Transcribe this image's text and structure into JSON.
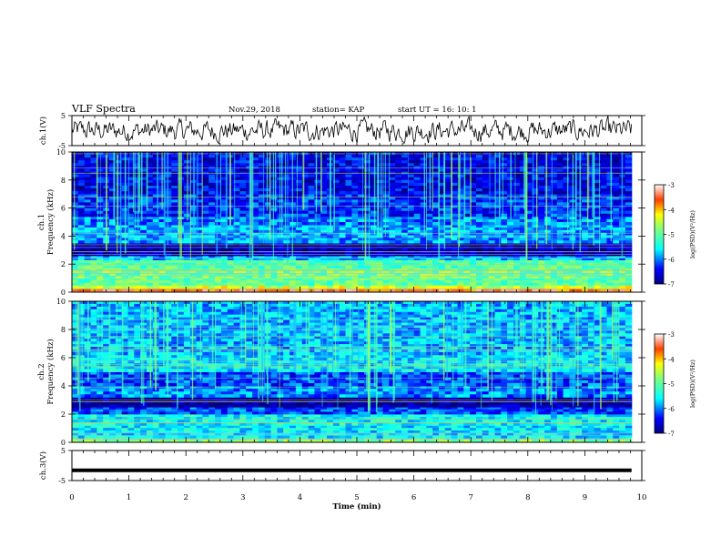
{
  "header": {
    "title": "VLF Spectra",
    "date": "Nov.29, 2018",
    "station": "station= KAP",
    "start_time": "start  UT =   16: 10: 1"
  },
  "chart_data": [
    {
      "type": "line",
      "name": "ch1-waveform-panel",
      "ylabel": "ch.1(V)",
      "ylim": [
        -5,
        5
      ],
      "yticks": [
        "5",
        "-5"
      ],
      "xlim": [
        0,
        10
      ],
      "x_data_end": 9.82,
      "description_of_trace": "noisy waveform oscillating roughly between -3 and +3 V",
      "amplitude_estimate": 2.5
    },
    {
      "type": "heatmap",
      "name": "ch1-spectrogram",
      "ylabel_line1": "ch.1",
      "ylabel_line2": "Frequency (kHz)",
      "ylim": [
        0,
        10
      ],
      "yticks": [
        "0",
        "2",
        "4",
        "6",
        "8",
        "10"
      ],
      "xlim": [
        0,
        10
      ],
      "x_data_end": 9.82,
      "colorbar": {
        "label": "log(PSD)(V²/Hz)",
        "range": [
          -7,
          -3
        ],
        "ticks": [
          "-3",
          "-4",
          "-5",
          "-6",
          "-7"
        ]
      },
      "bands_khz": [
        {
          "from": 0.0,
          "to": 0.25,
          "level": -3.6
        },
        {
          "from": 0.25,
          "to": 0.5,
          "level": -4.4
        },
        {
          "from": 0.5,
          "to": 1.0,
          "level": -5.0
        },
        {
          "from": 1.0,
          "to": 1.7,
          "level": -4.9
        },
        {
          "from": 1.7,
          "to": 2.3,
          "level": -5.1
        },
        {
          "from": 2.3,
          "to": 2.6,
          "level": -5.8
        },
        {
          "from": 2.6,
          "to": 3.5,
          "level": -6.8
        },
        {
          "from": 3.5,
          "to": 4.8,
          "level": -5.9
        },
        {
          "from": 4.8,
          "to": 5.4,
          "level": -6.0
        },
        {
          "from": 5.4,
          "to": 7.0,
          "level": -6.3
        },
        {
          "from": 7.0,
          "to": 10.0,
          "level": -6.5
        }
      ]
    },
    {
      "type": "heatmap",
      "name": "ch2-spectrogram",
      "ylabel_line1": "ch.2",
      "ylabel_line2": "Frequency (kHz)",
      "ylim": [
        0,
        10
      ],
      "yticks": [
        "0",
        "2",
        "4",
        "6",
        "8",
        "10"
      ],
      "xlim": [
        0,
        10
      ],
      "x_data_end": 9.82,
      "colorbar": {
        "label": "log(PSD)(V²/Hz)",
        "range": [
          -7,
          -3
        ],
        "ticks": [
          "-3",
          "-4",
          "-5",
          "-6",
          "-7"
        ]
      },
      "bands_khz": [
        {
          "from": 0.0,
          "to": 0.3,
          "level": -4.8
        },
        {
          "from": 0.3,
          "to": 1.2,
          "level": -5.6
        },
        {
          "from": 1.2,
          "to": 2.0,
          "level": -5.5
        },
        {
          "from": 2.0,
          "to": 2.5,
          "level": -6.2
        },
        {
          "from": 2.5,
          "to": 3.2,
          "level": -6.9
        },
        {
          "from": 3.2,
          "to": 4.0,
          "level": -6.0
        },
        {
          "from": 4.0,
          "to": 5.0,
          "level": -6.2
        },
        {
          "from": 5.0,
          "to": 6.2,
          "level": -5.6
        },
        {
          "from": 6.2,
          "to": 10.0,
          "level": -5.8
        }
      ]
    },
    {
      "type": "line",
      "name": "ch3-waveform-panel",
      "ylabel": "ch.3(V)",
      "ylim": [
        -5,
        5
      ],
      "yticks": [
        "5",
        "-5"
      ],
      "xlim": [
        0,
        10
      ],
      "x_data_end": 9.82,
      "constant_value": -1.6
    }
  ],
  "x_axis": {
    "label": "Time  (min)",
    "ticks": [
      "0",
      "1",
      "2",
      "3",
      "4",
      "5",
      "6",
      "7",
      "8",
      "9",
      "10"
    ]
  }
}
